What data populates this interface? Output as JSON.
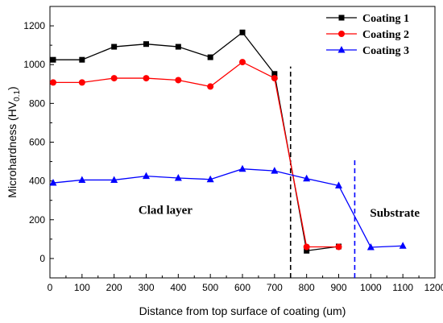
{
  "chart_data": {
    "type": "line",
    "xlabel": "Distance from top surface of coating (um)",
    "ylabel": "Microhardness (HV0.1)",
    "ylabel_main": "Microhardness (HV",
    "ylabel_sub": "0.1",
    "ylabel_close": ")",
    "xlim": [
      0,
      1200
    ],
    "ylim": [
      -100,
      1300
    ],
    "xticks": [
      0,
      100,
      200,
      300,
      400,
      500,
      600,
      700,
      800,
      900,
      1000,
      1100,
      1200
    ],
    "yticks": [
      0,
      200,
      400,
      600,
      800,
      1000,
      1200
    ],
    "grid": false,
    "legend_position": "top-right",
    "series": [
      {
        "name": "Coating 1",
        "color": "#000000",
        "marker": "square",
        "x": [
          10,
          100,
          200,
          300,
          400,
          500,
          600,
          700,
          800,
          900
        ],
        "y": [
          1025,
          1025,
          1092,
          1106,
          1092,
          1038,
          1166,
          952,
          40,
          62
        ]
      },
      {
        "name": "Coating 2",
        "color": "#ff0000",
        "marker": "circle",
        "x": [
          10,
          100,
          200,
          300,
          400,
          500,
          600,
          700,
          800,
          900
        ],
        "y": [
          908,
          908,
          930,
          930,
          920,
          887,
          1013,
          930,
          60,
          60
        ]
      },
      {
        "name": "Coating 3",
        "color": "#0000ff",
        "marker": "triangle",
        "x": [
          10,
          100,
          200,
          300,
          400,
          500,
          600,
          700,
          800,
          900,
          1000,
          1100
        ],
        "y": [
          390,
          405,
          405,
          425,
          415,
          408,
          462,
          452,
          412,
          376,
          58,
          65
        ]
      }
    ],
    "reference_lines": [
      {
        "x": 750,
        "color": "#000000",
        "style": "dashed",
        "y_range": [
          -100,
          990
        ]
      },
      {
        "x": 950,
        "color": "#0000ff",
        "style": "dashed",
        "y_range": [
          -100,
          522
        ]
      }
    ],
    "annotations": [
      {
        "text": "Clad layer",
        "x": 360,
        "y": 230
      },
      {
        "text": "Substrate",
        "x": 1075,
        "y": 215
      }
    ]
  }
}
